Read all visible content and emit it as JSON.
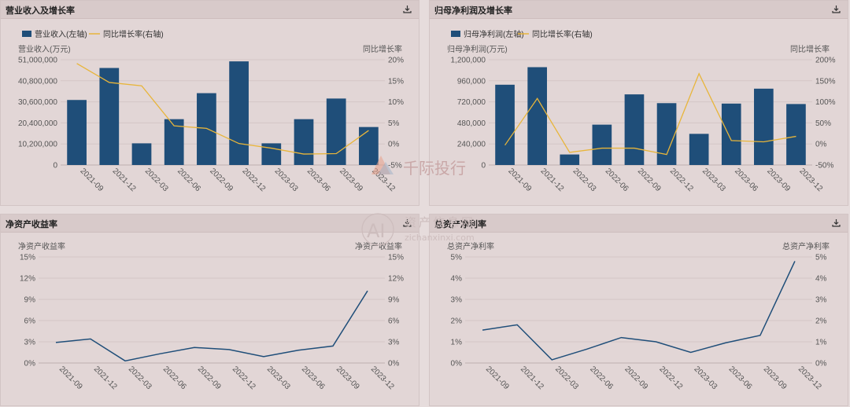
{
  "colors": {
    "bar": "#1f4e79",
    "line_yellow": "#e8b53a",
    "line_blue": "#1f4e79",
    "grid": "#d4c6c6",
    "axis_text": "#555555"
  },
  "icons": {
    "download": "download-icon"
  },
  "panels": [
    {
      "title": "营业收入及增长率",
      "download_icon": "download-icon"
    },
    {
      "title": "归母净利润及增长率",
      "download_icon": "download-icon"
    },
    {
      "title": "净资产收益率",
      "download_icon": "download-icon"
    },
    {
      "title": "总资产净利率",
      "download_icon": "download-icon"
    }
  ],
  "watermark": {
    "brand1": "千际投行",
    "brand2_cn": "资产信息网",
    "brand2_ai": "AI",
    "brand2_url": "zichanxinxi.com"
  },
  "chart_data": [
    {
      "type": "bar",
      "title": "营业收入及增长率",
      "categories": [
        "2021-09",
        "2021-12",
        "2022-03",
        "2022-06",
        "2022-09",
        "2022-12",
        "2023-03",
        "2023-06",
        "2023-09",
        "2023-12"
      ],
      "left_axis_label": "营业收入(万元)",
      "right_axis_label": "同比增长率",
      "left_ticks": [
        "0",
        "10,200,000",
        "20,400,000",
        "30,600,000",
        "40,800,000",
        "51,000,000"
      ],
      "right_ticks": [
        "-5%",
        "0%",
        "5%",
        "10%",
        "15%",
        "20%"
      ],
      "ylim_left": [
        0,
        51000000
      ],
      "ylim_right": [
        -5,
        20
      ],
      "grid": true,
      "legend_position": "top-left",
      "series": [
        {
          "name": "营业收入(左轴)",
          "type": "bar",
          "axis": "left",
          "values": [
            31500000,
            47000000,
            10500000,
            22200000,
            34800000,
            50200000,
            10500000,
            22200000,
            32200000,
            18400000
          ]
        },
        {
          "name": "同比增长率(右轴)",
          "type": "line",
          "axis": "right",
          "values": [
            19.1,
            14.6,
            13.8,
            4.3,
            3.7,
            0.1,
            -1.0,
            -2.4,
            -2.3,
            3.2
          ]
        }
      ]
    },
    {
      "type": "bar",
      "title": "归母净利润及增长率",
      "categories": [
        "2021-09",
        "2021-12",
        "2022-03",
        "2022-06",
        "2022-09",
        "2022-12",
        "2023-03",
        "2023-06",
        "2023-09",
        "2023-12"
      ],
      "left_axis_label": "归母净利润(万元)",
      "right_axis_label": "同比增长率",
      "left_ticks": [
        "0",
        "240,000",
        "480,000",
        "720,000",
        "960,000",
        "1,200,000"
      ],
      "right_ticks": [
        "-50%",
        "0%",
        "50%",
        "100%",
        "150%",
        "200%"
      ],
      "ylim_left": [
        0,
        1200000
      ],
      "ylim_right": [
        -50,
        200
      ],
      "grid": true,
      "legend_position": "top-left",
      "series": [
        {
          "name": "归母净利润(左轴)",
          "type": "bar",
          "axis": "left",
          "values": [
            915000,
            1115000,
            120000,
            460000,
            805000,
            705000,
            355000,
            700000,
            870000,
            695000
          ]
        },
        {
          "name": "同比增长率(右轴)",
          "type": "line",
          "axis": "right",
          "values": [
            -3,
            108,
            -20,
            -10,
            -10,
            -25,
            167,
            8,
            5,
            18
          ]
        }
      ]
    },
    {
      "type": "line",
      "title": "净资产收益率",
      "categories": [
        "2021-09",
        "2021-12",
        "2022-03",
        "2022-06",
        "2022-09",
        "2022-12",
        "2023-03",
        "2023-06",
        "2023-09",
        "2023-12"
      ],
      "left_axis_label": "净资产收益率",
      "right_axis_label": "净资产收益率",
      "left_ticks": [
        "0%",
        "3%",
        "6%",
        "9%",
        "12%",
        "15%"
      ],
      "right_ticks": [
        "0%",
        "3%",
        "6%",
        "9%",
        "12%",
        "15%"
      ],
      "ylim_left": [
        0,
        15
      ],
      "grid": true,
      "series": [
        {
          "name": "",
          "type": "line",
          "axis": "left",
          "values": [
            2.9,
            3.4,
            0.3,
            1.3,
            2.2,
            1.9,
            0.9,
            1.8,
            2.4,
            10.2
          ]
        }
      ]
    },
    {
      "type": "line",
      "title": "总资产净利率",
      "categories": [
        "2021-09",
        "2021-12",
        "2022-03",
        "2022-06",
        "2022-09",
        "2022-12",
        "2023-03",
        "2023-06",
        "2023-09",
        "2023-12"
      ],
      "left_axis_label": "总资产净利率",
      "right_axis_label": "总资产净利率",
      "left_ticks": [
        "0%",
        "1%",
        "2%",
        "3%",
        "4%",
        "5%"
      ],
      "right_ticks": [
        "0%",
        "1%",
        "2%",
        "3%",
        "4%",
        "5%"
      ],
      "ylim_left": [
        0,
        5
      ],
      "grid": true,
      "series": [
        {
          "name": "",
          "type": "line",
          "axis": "left",
          "values": [
            1.55,
            1.8,
            0.15,
            0.65,
            1.2,
            1.0,
            0.5,
            0.95,
            1.3,
            4.8
          ]
        }
      ]
    }
  ]
}
